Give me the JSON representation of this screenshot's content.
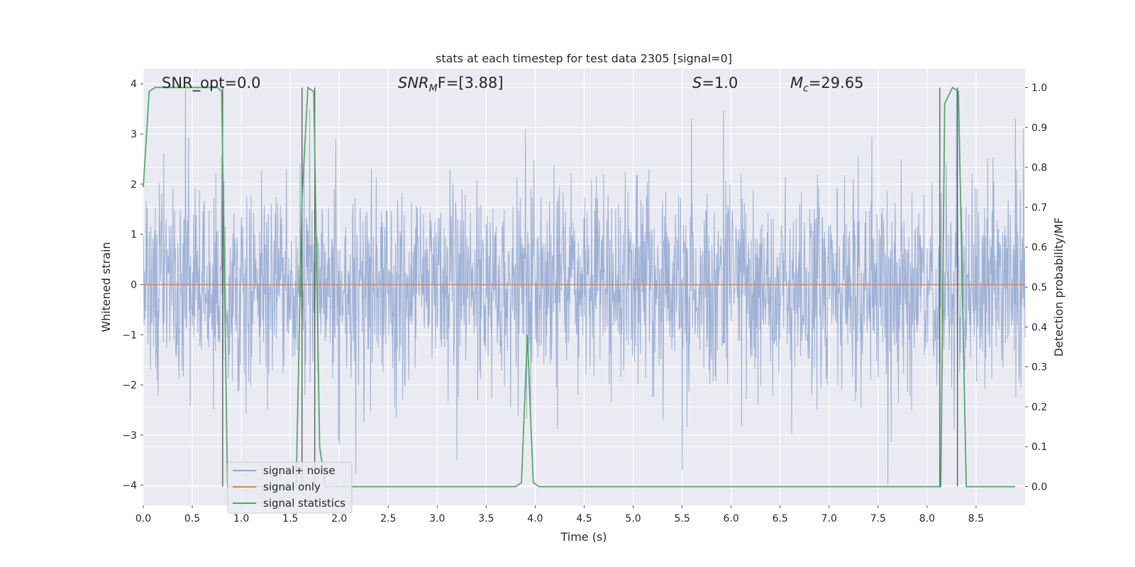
{
  "chart_data": {
    "type": "line",
    "title": "stats at each timestep for test data 2305 [signal=0]",
    "xlabel": "Time (s)",
    "ylabel": "Whitened strain",
    "y2label": "Detection probability/MF",
    "xlim": [
      0,
      9.0
    ],
    "ylim": [
      -4.4,
      4.3
    ],
    "y2lim": [
      -0.047,
      1.047
    ],
    "xticks": [
      "0.0",
      "0.5",
      "1.0",
      "1.5",
      "2.0",
      "2.5",
      "3.0",
      "3.5",
      "4.0",
      "4.5",
      "5.0",
      "5.5",
      "6.0",
      "6.5",
      "7.0",
      "7.5",
      "8.0",
      "8.5"
    ],
    "yticks": [
      "4",
      "3",
      "2",
      "1",
      "0",
      "−1",
      "−2",
      "−3",
      "−4"
    ],
    "y2ticks": [
      "1.0",
      "0.9",
      "0.8",
      "0.7",
      "0.6",
      "0.5",
      "0.4",
      "0.3",
      "0.2",
      "0.1",
      "0.0"
    ],
    "grid": true,
    "legend_position": "lower-left",
    "annotations": {
      "snr_opt": "SNR_opt=0.0",
      "snr_mf_main": "SNR",
      "snr_mf_sub": "M",
      "snr_mf_rest": "F=[3.88]",
      "s_main": "S",
      "s_rest": "=1.0",
      "mc_main": "M",
      "mc_sub": "c",
      "mc_rest": "=29.65"
    },
    "series": [
      {
        "name": "signal+ noise",
        "color": "#8fa6d0",
        "axis": "left",
        "noise_sigma": 1.0,
        "notable_peaks": [
          [
            0.43,
            3.9
          ],
          [
            0.8,
            2.6
          ],
          [
            1.7,
            3.5
          ],
          [
            3.9,
            3.1
          ],
          [
            5.5,
            3.5
          ],
          [
            8.3,
            3.9
          ],
          [
            8.9,
            3.3
          ],
          [
            2.0,
            -3.2
          ],
          [
            3.2,
            -3.5
          ],
          [
            5.5,
            -3.7
          ],
          [
            7.6,
            -4.0
          ]
        ]
      },
      {
        "name": "signal only",
        "color": "#dd8452",
        "axis": "left",
        "x": [
          0.0,
          9.0
        ],
        "y": [
          0.0,
          0.0
        ]
      },
      {
        "name": "signal statistics",
        "color": "#55a868",
        "axis": "right",
        "x": [
          0.0,
          0.06,
          0.12,
          0.2,
          0.5,
          0.76,
          0.8,
          0.86,
          0.9,
          1.0,
          1.5,
          1.56,
          1.62,
          1.68,
          1.74,
          1.8,
          1.86,
          2.0,
          3.8,
          3.86,
          3.92,
          3.98,
          4.04,
          4.5,
          8.1,
          8.14,
          8.18,
          8.26,
          8.32,
          8.4,
          8.46,
          8.9
        ],
        "y": [
          0.75,
          0.99,
          1.0,
          1.0,
          1.0,
          1.0,
          0.99,
          0.0,
          0.0,
          0.0,
          0.0,
          0.0,
          0.72,
          1.0,
          0.99,
          0.1,
          0.0,
          0.0,
          0.0,
          0.01,
          0.38,
          0.01,
          0.0,
          0.0,
          0.0,
          0.0,
          0.96,
          1.0,
          0.99,
          0.0,
          0.0,
          0.0
        ]
      }
    ],
    "vlines": {
      "color": "#555555",
      "x": [
        0.81,
        1.62,
        1.75,
        8.13,
        8.31
      ]
    }
  }
}
